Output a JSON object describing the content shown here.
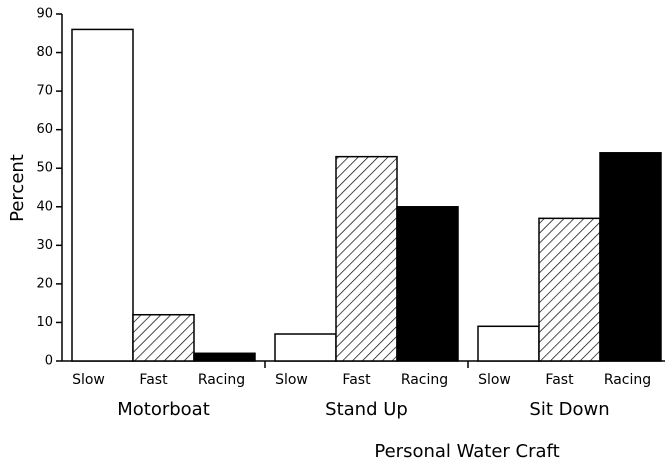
{
  "chart_data": {
    "type": "bar",
    "y_label": "Percent",
    "annotation": "Personal Water Craft",
    "categories": [
      "Motorboat",
      "Stand Up",
      "Sit Down"
    ],
    "series": [
      {
        "name": "Slow",
        "color": "#ffffff",
        "values": [
          86,
          7,
          9
        ]
      },
      {
        "name": "Fast",
        "color": "#ffffff",
        "hatch": true,
        "values": [
          12,
          53,
          37
        ]
      },
      {
        "name": "Racing",
        "color": "#000000",
        "values": [
          2,
          40,
          54
        ]
      }
    ],
    "ylim": [
      0,
      90
    ],
    "yticks": [
      0,
      10,
      20,
      30,
      40,
      50,
      60,
      70,
      80,
      90
    ],
    "grid": false
  }
}
